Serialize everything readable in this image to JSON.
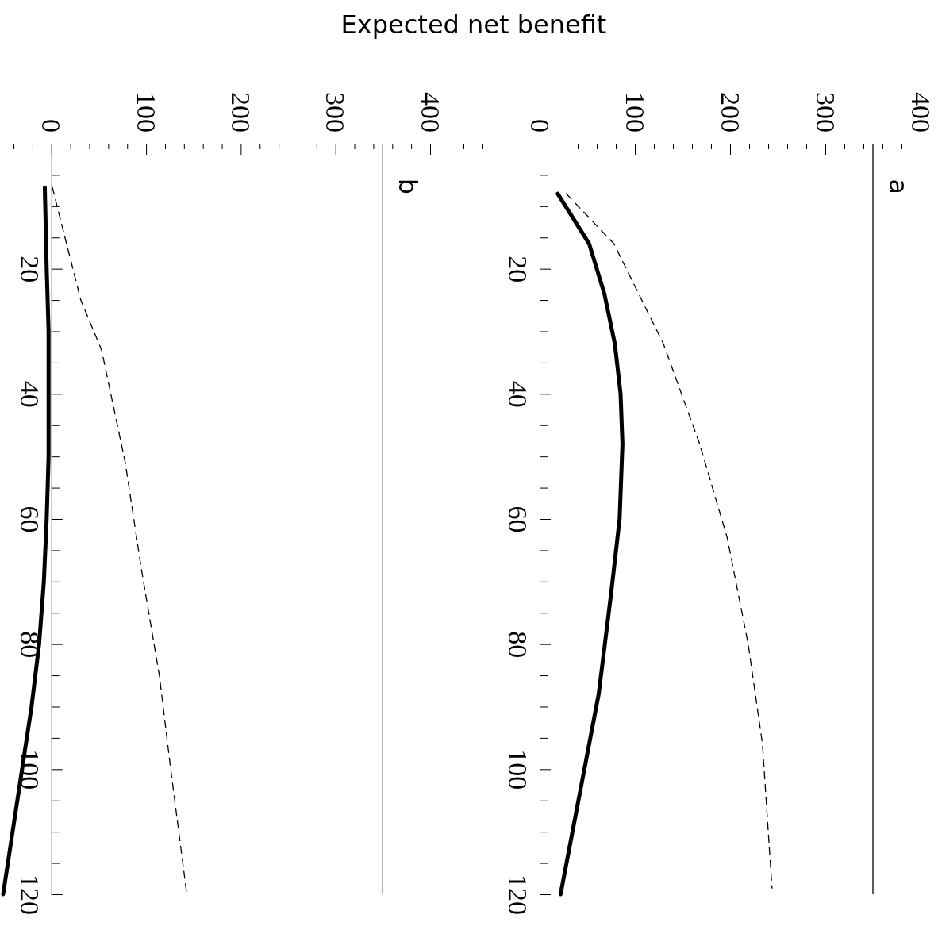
{
  "chart_data": [
    {
      "type": "line",
      "title": "a",
      "xlabel": "Expected net benefit",
      "xlim": [
        -90,
        400
      ],
      "ylim": [
        120,
        0
      ],
      "yticks": [
        {
          "value": 5,
          "label": null
        },
        {
          "value": 10,
          "label": null
        },
        {
          "value": 15,
          "label": null
        },
        20,
        {
          "value": 25,
          "label": null
        },
        {
          "value": 30,
          "label": null
        },
        {
          "value": 35,
          "label": null
        },
        40,
        {
          "value": 45,
          "label": null
        },
        {
          "value": 50,
          "label": null
        },
        {
          "value": 55,
          "label": null
        },
        60,
        {
          "value": 65,
          "label": null
        },
        {
          "value": 70,
          "label": null
        },
        {
          "value": 75,
          "label": null
        },
        80,
        {
          "value": 85,
          "label": null
        },
        {
          "value": 90,
          "label": null
        },
        {
          "value": 95,
          "label": null
        },
        100,
        {
          "value": 105,
          "label": null
        },
        {
          "value": 110,
          "label": null
        },
        {
          "value": 115,
          "label": null
        },
        120
      ],
      "xticks": [
        {
          "value": -80,
          "label": null
        },
        {
          "value": -60,
          "label": null
        },
        {
          "value": -40,
          "label": null
        },
        {
          "value": -20,
          "label": null
        },
        0,
        {
          "value": 20,
          "label": null
        },
        {
          "value": 40,
          "label": null
        },
        {
          "value": 60,
          "label": null
        },
        {
          "value": 80,
          "label": null
        },
        100,
        {
          "value": 120,
          "label": null
        },
        {
          "value": 140,
          "label": null
        },
        {
          "value": 160,
          "label": null
        },
        {
          "value": 180,
          "label": null
        },
        200,
        {
          "value": 220,
          "label": null
        },
        {
          "value": 240,
          "label": null
        },
        {
          "value": 260,
          "label": null
        },
        {
          "value": 280,
          "label": null
        },
        300,
        {
          "value": 320,
          "label": null
        },
        {
          "value": 340,
          "label": null
        },
        {
          "value": 360,
          "label": null
        },
        {
          "value": 380,
          "label": null
        },
        400
      ],
      "grid": false,
      "ref_lines": [
        {
          "axis": "x",
          "value": 350,
          "color": "#000000"
        }
      ],
      "series": [
        {
          "color": "#000000",
          "line_style": "solid",
          "x": [
            19,
            52,
            68,
            79,
            85,
            87,
            84,
            75,
            62,
            42,
            22
          ],
          "values": [
            8,
            16,
            24,
            32,
            40,
            48,
            60,
            72,
            88,
            104,
            120
          ]
        },
        {
          "color": "#000000",
          "line_style": "dashed",
          "x": [
            28,
            78,
            130,
            168,
            197,
            219,
            234,
            244
          ],
          "values": [
            8,
            16,
            32,
            48,
            63,
            80,
            96,
            119
          ]
        }
      ]
    },
    {
      "type": "line",
      "title": "b",
      "xlim": [
        -55,
        400
      ],
      "ylim": [
        120,
        0
      ],
      "yticks": [
        {
          "value": 5,
          "label": null
        },
        {
          "value": 10,
          "label": null
        },
        {
          "value": 15,
          "label": null
        },
        20,
        {
          "value": 25,
          "label": null
        },
        {
          "value": 30,
          "label": null
        },
        {
          "value": 35,
          "label": null
        },
        40,
        {
          "value": 45,
          "label": null
        },
        {
          "value": 50,
          "label": null
        },
        {
          "value": 55,
          "label": null
        },
        60,
        {
          "value": 65,
          "label": null
        },
        {
          "value": 70,
          "label": null
        },
        {
          "value": 75,
          "label": null
        },
        80,
        {
          "value": 85,
          "label": null
        },
        {
          "value": 90,
          "label": null
        },
        {
          "value": 95,
          "label": null
        },
        100,
        {
          "value": 105,
          "label": null
        },
        {
          "value": 110,
          "label": null
        },
        {
          "value": 115,
          "label": null
        },
        120
      ],
      "xticks": [
        {
          "value": -40,
          "label": null
        },
        {
          "value": -20,
          "label": null
        },
        0,
        {
          "value": 20,
          "label": null
        },
        {
          "value": 40,
          "label": null
        },
        {
          "value": 60,
          "label": null
        },
        {
          "value": 80,
          "label": null
        },
        100,
        {
          "value": 120,
          "label": null
        },
        {
          "value": 140,
          "label": null
        },
        {
          "value": 160,
          "label": null
        },
        {
          "value": 180,
          "label": null
        },
        200,
        {
          "value": 220,
          "label": null
        },
        {
          "value": 240,
          "label": null
        },
        {
          "value": 260,
          "label": null
        },
        {
          "value": 280,
          "label": null
        },
        300,
        {
          "value": 320,
          "label": null
        },
        {
          "value": 340,
          "label": null
        },
        {
          "value": 360,
          "label": null
        },
        {
          "value": 380,
          "label": null
        },
        400
      ],
      "grid": false,
      "ref_lines": [
        {
          "axis": "x",
          "value": 350,
          "color": "#000000"
        }
      ],
      "series": [
        {
          "color": "#000000",
          "line_style": "solid",
          "x": [
            -7,
            -5,
            -3,
            -3,
            -3,
            -5,
            -8,
            -13,
            -21,
            -31,
            -41,
            -51
          ],
          "values": [
            7,
            20,
            30,
            40,
            50,
            60,
            70,
            80,
            90,
            100,
            110,
            120
          ]
        },
        {
          "color": "#000000",
          "line_style": "dashed",
          "x": [
            1,
            31,
            53,
            78,
            95,
            114,
            126,
            143
          ],
          "values": [
            7,
            25,
            33,
            51,
            68,
            85,
            100,
            120
          ]
        }
      ]
    }
  ]
}
